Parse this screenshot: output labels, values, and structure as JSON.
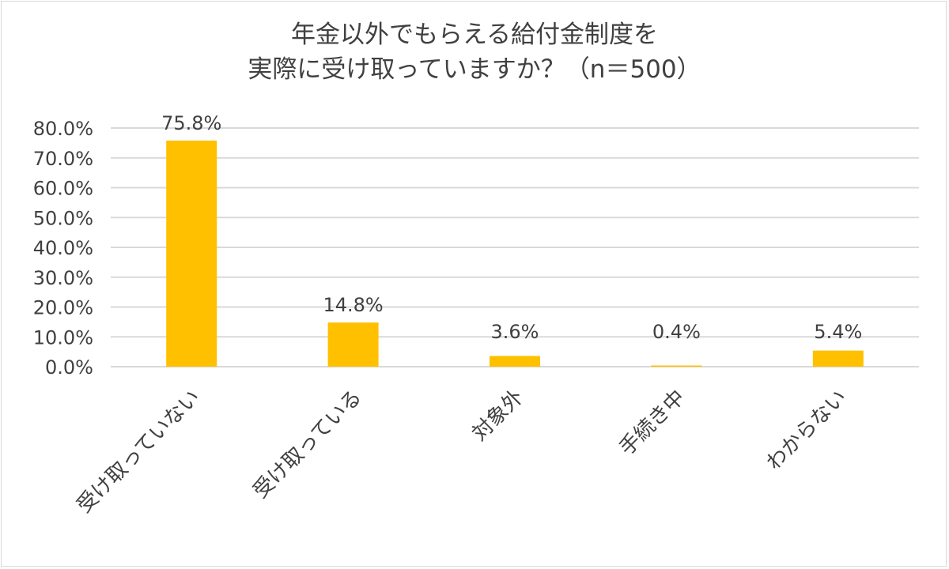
{
  "chart_data": {
    "type": "bar",
    "title_lines": [
      "年金以外でもらえる給付金制度を",
      "実際に受け取っていますか？（n＝500）"
    ],
    "categories": [
      "受け取っていない",
      "受け取っている",
      "対象外",
      "手続き中",
      "わからない"
    ],
    "values": [
      75.8,
      14.8,
      3.6,
      0.4,
      5.4
    ],
    "data_labels": [
      "75.8%",
      "14.8%",
      "3.6%",
      "0.4%",
      "5.4%"
    ],
    "y_ticks": [
      "0.0%",
      "10.0%",
      "20.0%",
      "30.0%",
      "40.0%",
      "50.0%",
      "60.0%",
      "70.0%",
      "80.0%"
    ],
    "ylim": [
      0,
      80
    ],
    "grid": true,
    "bar_color": "#ffc000",
    "grid_color": "#d9d9d9",
    "text_color": "#404040"
  }
}
